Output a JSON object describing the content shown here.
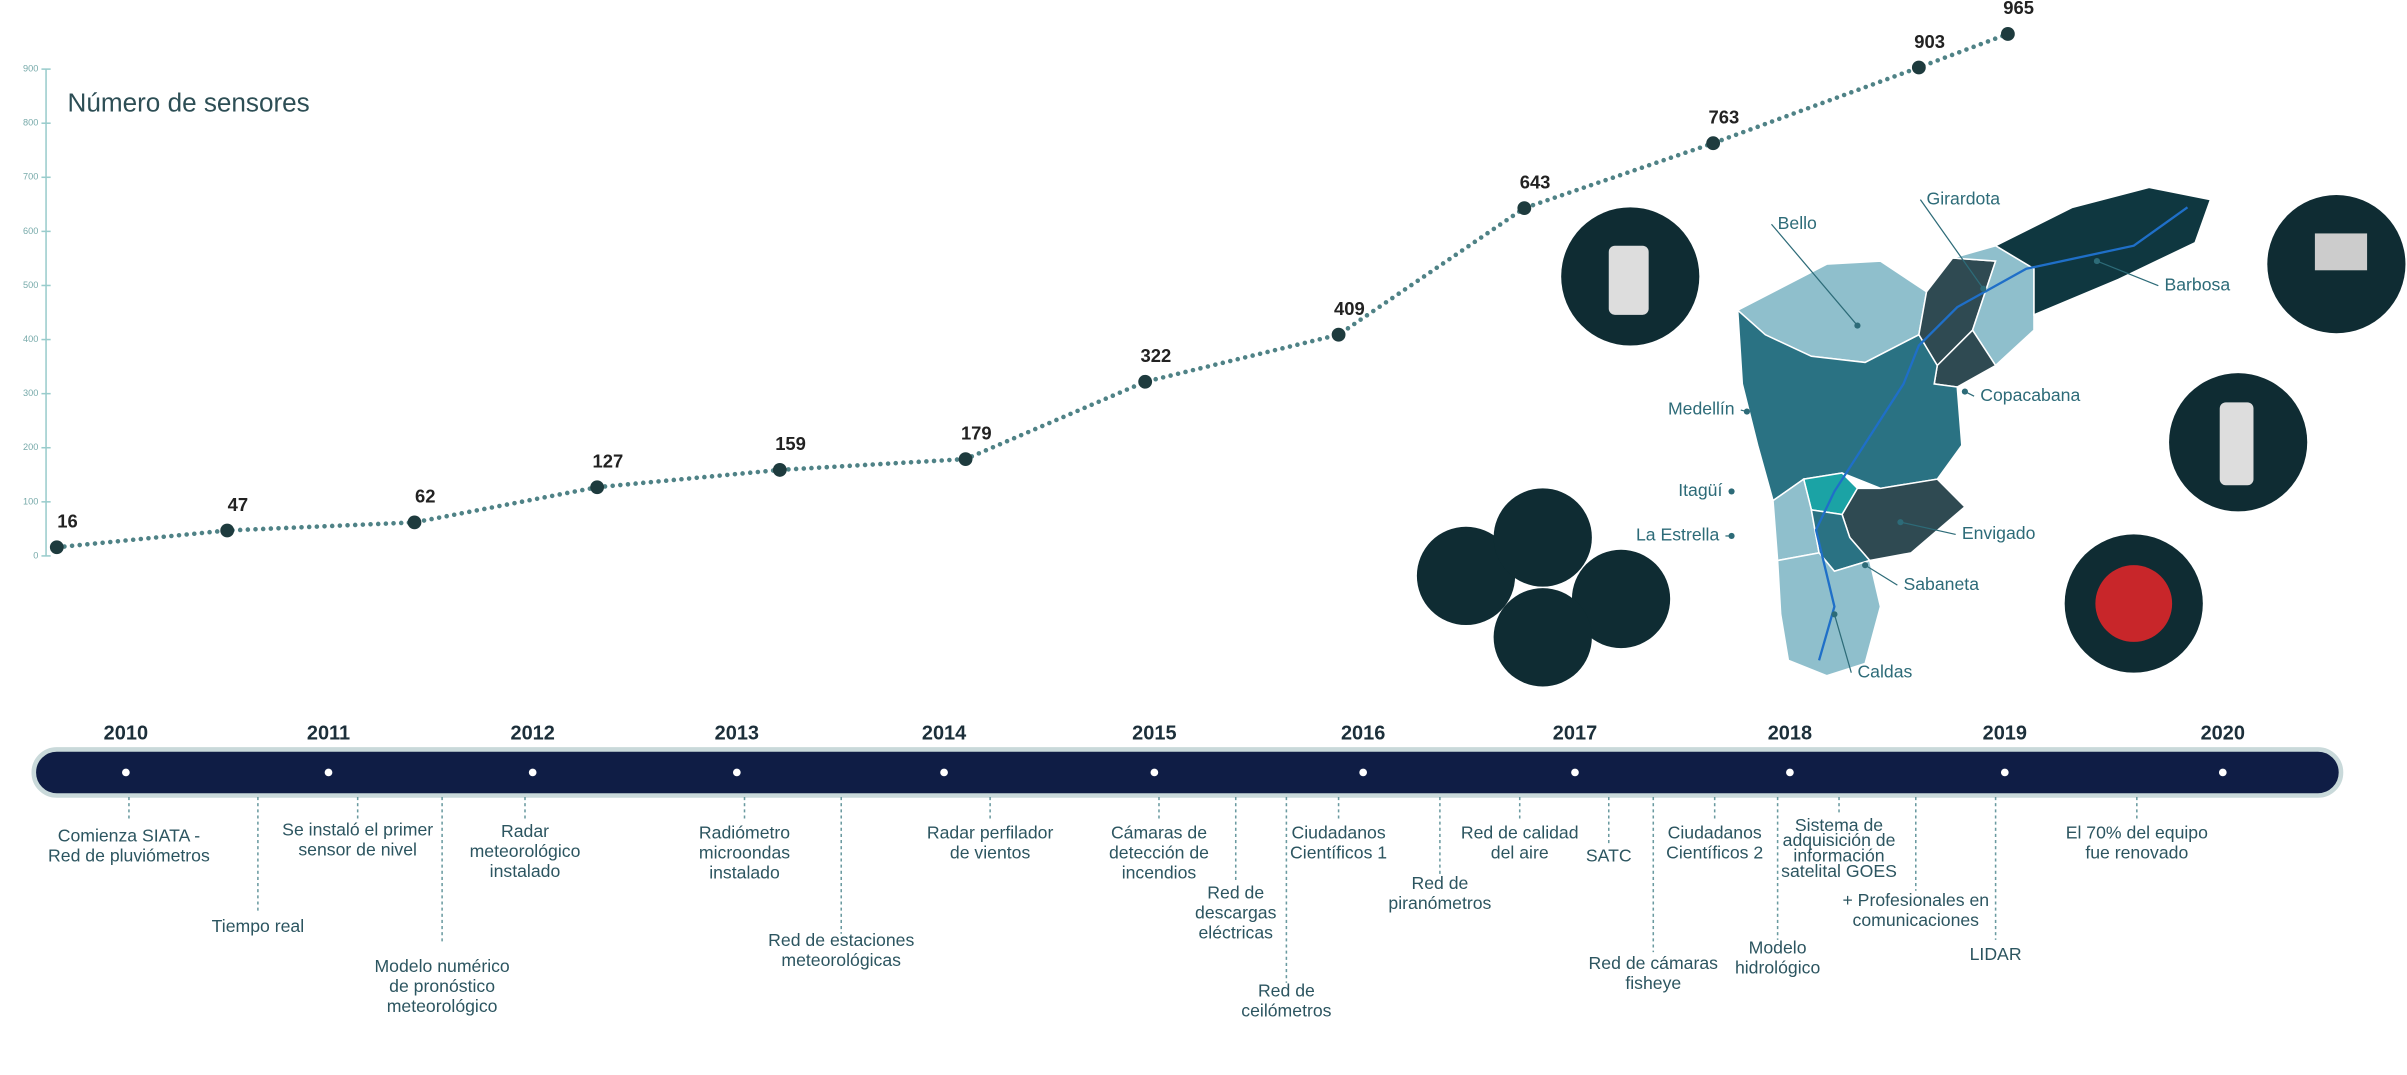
{
  "chart_data": {
    "type": "line",
    "title": "Número de sensores",
    "categories": [
      null,
      null,
      null,
      null,
      null,
      null,
      null,
      null,
      null,
      null,
      null,
      null
    ],
    "values": [
      16,
      47,
      62,
      127,
      159,
      179,
      322,
      409,
      643,
      763,
      903,
      965
    ],
    "color": "#4f8286",
    "marker_color": "#1e3b3e",
    "ylim": [
      0,
      900
    ],
    "yticks": [
      0,
      100,
      200,
      300,
      400,
      500,
      600,
      700,
      800,
      900
    ]
  },
  "timeline": {
    "years": [
      "2010",
      "2011",
      "2012",
      "2013",
      "2014",
      "2015",
      "2016",
      "2017",
      "2018",
      "2019",
      "2020"
    ],
    "events": [
      {
        "lines": [
          "Comienza SIATA -",
          "Red de pluviómetros"
        ]
      },
      {
        "lines": [
          "Tiempo real"
        ]
      },
      {
        "lines": [
          "Se instaló el primer",
          "sensor de nivel"
        ]
      },
      {
        "lines": [
          "Modelo numérico",
          "de pronóstico",
          "meteorológico"
        ]
      },
      {
        "lines": [
          "Radar",
          "meteorológico",
          "instalado"
        ]
      },
      {
        "lines": [
          "Radiómetro",
          "microondas",
          "instalado"
        ]
      },
      {
        "lines": [
          "Red de estaciones",
          "meteorológicas"
        ]
      },
      {
        "lines": [
          "Radar perfilador",
          "de vientos"
        ]
      },
      {
        "lines": [
          "Cámaras de",
          "detección de",
          "incendios"
        ]
      },
      {
        "lines": [
          "Red de",
          "descargas",
          "eléctricas"
        ]
      },
      {
        "lines": [
          "Red de",
          "ceilómetros"
        ]
      },
      {
        "lines": [
          "Ciudadanos",
          "Científicos 1"
        ]
      },
      {
        "lines": [
          "Red de",
          "piranómetros"
        ]
      },
      {
        "lines": [
          "Red de calidad",
          "del aire"
        ]
      },
      {
        "lines": [
          "SATC"
        ]
      },
      {
        "lines": [
          "Red de cámaras",
          "fisheye"
        ]
      },
      {
        "lines": [
          "Ciudadanos",
          "Científicos 2"
        ]
      },
      {
        "lines": [
          "Modelo",
          "hidrológico"
        ]
      },
      {
        "lines": [
          "Sistema de",
          "adquisición de",
          "información",
          "satelital GOES"
        ]
      },
      {
        "lines": [
          "+ Profesionales en",
          "comunicaciones"
        ]
      },
      {
        "lines": [
          "LIDAR"
        ]
      },
      {
        "lines": [
          "El 70% del equipo",
          "fue renovado"
        ]
      }
    ]
  },
  "map": {
    "labels": [
      "Bello",
      "Girardota",
      "Barbosa",
      "Copacabana",
      "Medellín",
      "Itagüí",
      "La Estrella",
      "Envigado",
      "Sabaneta",
      "Caldas"
    ]
  }
}
